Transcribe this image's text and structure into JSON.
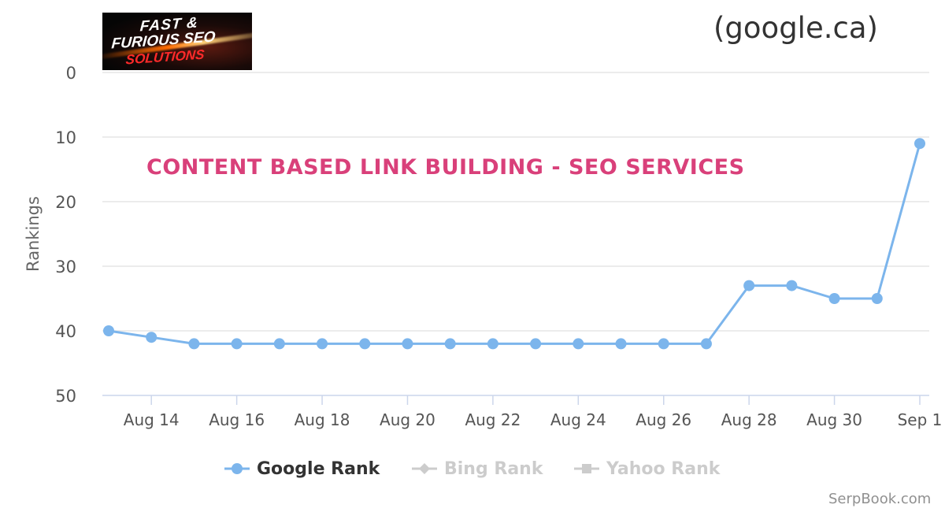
{
  "header": {
    "logo_line1": "FAST &",
    "logo_line2": "FURIOUS SEO",
    "logo_line3": "SOLUTIONS",
    "site": "(google.ca)"
  },
  "overlay_title": "CONTENT BASED LINK BUILDING - SEO SERVICES",
  "credit": "SerpBook.com",
  "colors": {
    "google": "#7cb5ec",
    "inactive": "#cccccc",
    "overlay": "#d9407a",
    "grid": "#e6e6e6",
    "axis": "#ccd6eb"
  },
  "chart_data": {
    "type": "line",
    "ylabel": "Rankings",
    "y_reversed": true,
    "ylim": [
      0,
      50
    ],
    "yticks": [
      0,
      10,
      20,
      30,
      40,
      50
    ],
    "xlim": [
      "2019-08-13",
      "2019-09-01"
    ],
    "xticks": [
      {
        "date": "2019-08-14",
        "label": "Aug 14"
      },
      {
        "date": "2019-08-16",
        "label": "Aug 16"
      },
      {
        "date": "2019-08-18",
        "label": "Aug 18"
      },
      {
        "date": "2019-08-20",
        "label": "Aug 20"
      },
      {
        "date": "2019-08-22",
        "label": "Aug 22"
      },
      {
        "date": "2019-08-24",
        "label": "Aug 24"
      },
      {
        "date": "2019-08-26",
        "label": "Aug 26"
      },
      {
        "date": "2019-08-28",
        "label": "Aug 28"
      },
      {
        "date": "2019-08-30",
        "label": "Aug 30"
      },
      {
        "date": "2019-09-01",
        "label": "Sep 1"
      }
    ],
    "grid": true,
    "legend_placement": "bottom-center",
    "series": [
      {
        "name": "Google Rank",
        "visible": true,
        "marker": "circle",
        "x": [
          "2019-08-13",
          "2019-08-14",
          "2019-08-15",
          "2019-08-16",
          "2019-08-17",
          "2019-08-18",
          "2019-08-19",
          "2019-08-20",
          "2019-08-21",
          "2019-08-22",
          "2019-08-23",
          "2019-08-24",
          "2019-08-25",
          "2019-08-26",
          "2019-08-27",
          "2019-08-28",
          "2019-08-29",
          "2019-08-30",
          "2019-08-31",
          "2019-09-01"
        ],
        "values": [
          40,
          41,
          42,
          42,
          42,
          42,
          42,
          42,
          42,
          42,
          42,
          42,
          42,
          42,
          42,
          33,
          33,
          35,
          35,
          11
        ]
      },
      {
        "name": "Bing Rank",
        "visible": false,
        "marker": "diamond",
        "x": [],
        "values": []
      },
      {
        "name": "Yahoo Rank",
        "visible": false,
        "marker": "square",
        "x": [],
        "values": []
      }
    ]
  }
}
